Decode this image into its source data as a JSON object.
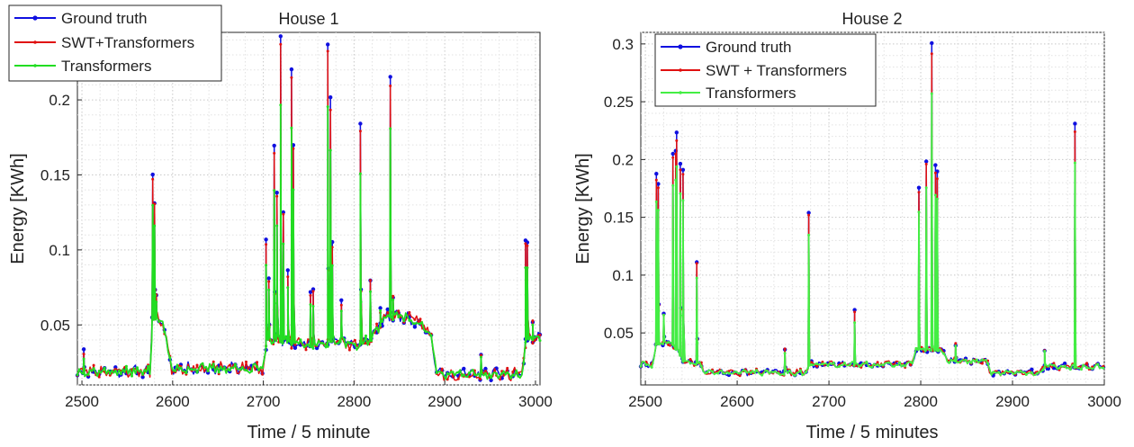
{
  "chart_data": [
    {
      "type": "line",
      "title": "House 1",
      "xlabel": "Time / 5 minute",
      "ylabel": "Energy [KWh]",
      "xlim": [
        2495,
        3005
      ],
      "ylim": [
        0.01,
        0.245
      ],
      "xticks": [
        2500,
        2600,
        2700,
        2800,
        2900,
        3000
      ],
      "yticks": [
        0.05,
        0.1,
        0.15,
        0.2
      ],
      "ytick_labels": [
        "0.05",
        "0.1",
        "0.15",
        "0.2"
      ],
      "grid": true,
      "legend_position": "top-left-outside",
      "baseline": [
        [
          2495,
          0.018
        ],
        [
          2575,
          0.018
        ],
        [
          2578,
          0.055
        ],
        [
          2590,
          0.05
        ],
        [
          2598,
          0.02
        ],
        [
          2700,
          0.02
        ],
        [
          2705,
          0.04
        ],
        [
          2760,
          0.035
        ],
        [
          2780,
          0.04
        ],
        [
          2800,
          0.035
        ],
        [
          2820,
          0.04
        ],
        [
          2835,
          0.055
        ],
        [
          2850,
          0.055
        ],
        [
          2875,
          0.05
        ],
        [
          2885,
          0.04
        ],
        [
          2892,
          0.016
        ],
        [
          2985,
          0.016
        ],
        [
          2990,
          0.04
        ],
        [
          2995,
          0.04
        ],
        [
          3005,
          0.04
        ]
      ],
      "spikes": [
        [
          2502,
          0.032
        ],
        [
          2578,
          0.152
        ],
        [
          2580,
          0.132
        ],
        [
          2582,
          0.07
        ],
        [
          2703,
          0.105
        ],
        [
          2706,
          0.082
        ],
        [
          2712,
          0.17
        ],
        [
          2715,
          0.138
        ],
        [
          2719,
          0.242
        ],
        [
          2722,
          0.125
        ],
        [
          2727,
          0.085
        ],
        [
          2731,
          0.222
        ],
        [
          2733,
          0.17
        ],
        [
          2752,
          0.07
        ],
        [
          2755,
          0.072
        ],
        [
          2771,
          0.238
        ],
        [
          2774,
          0.2
        ],
        [
          2776,
          0.105
        ],
        [
          2786,
          0.065
        ],
        [
          2807,
          0.183
        ],
        [
          2818,
          0.08
        ],
        [
          2829,
          0.06
        ],
        [
          2840,
          0.215
        ],
        [
          2843,
          0.07
        ],
        [
          2940,
          0.03
        ],
        [
          2989,
          0.105
        ],
        [
          2991,
          0.104
        ],
        [
          2997,
          0.052
        ]
      ],
      "series": [
        {
          "name": "Ground truth",
          "color": "#1010e0",
          "scale": 1.0,
          "noise": 0.003,
          "seed": 11
        },
        {
          "name": "SWT+Transformers",
          "color": "#e01010",
          "scale": 0.97,
          "noise": 0.0032,
          "seed": 23
        },
        {
          "name": "Transformers",
          "color": "#22dd22",
          "scale": 0.78,
          "noise": 0.0025,
          "seed": 37
        }
      ]
    },
    {
      "type": "line",
      "title": "House 2",
      "xlabel": "Time / 5 minutes",
      "ylabel": "Energy [KWh]",
      "xlim": [
        2495,
        3000
      ],
      "ylim": [
        0.005,
        0.31
      ],
      "xticks": [
        2500,
        2600,
        2700,
        2800,
        2900,
        3000
      ],
      "yticks": [
        0.05,
        0.1,
        0.15,
        0.2,
        0.25,
        0.3
      ],
      "ytick_labels": [
        "0.05",
        "0.1",
        "0.15",
        "0.2",
        "0.25",
        "0.3"
      ],
      "grid": true,
      "legend_position": "top-left",
      "baseline": [
        [
          2495,
          0.022
        ],
        [
          2508,
          0.022
        ],
        [
          2512,
          0.04
        ],
        [
          2530,
          0.04
        ],
        [
          2542,
          0.025
        ],
        [
          2560,
          0.022
        ],
        [
          2565,
          0.015
        ],
        [
          2675,
          0.015
        ],
        [
          2680,
          0.022
        ],
        [
          2790,
          0.022
        ],
        [
          2795,
          0.035
        ],
        [
          2822,
          0.035
        ],
        [
          2830,
          0.025
        ],
        [
          2872,
          0.025
        ],
        [
          2876,
          0.015
        ],
        [
          2932,
          0.015
        ],
        [
          2935,
          0.02
        ],
        [
          3000,
          0.02
        ]
      ],
      "spikes": [
        [
          2512,
          0.188
        ],
        [
          2514,
          0.18
        ],
        [
          2520,
          0.068
        ],
        [
          2530,
          0.205
        ],
        [
          2533,
          0.208
        ],
        [
          2534,
          0.222
        ],
        [
          2538,
          0.195
        ],
        [
          2541,
          0.192
        ],
        [
          2556,
          0.113
        ],
        [
          2652,
          0.035
        ],
        [
          2678,
          0.155
        ],
        [
          2728,
          0.068
        ],
        [
          2798,
          0.176
        ],
        [
          2806,
          0.2
        ],
        [
          2812,
          0.301
        ],
        [
          2816,
          0.195
        ],
        [
          2818,
          0.19
        ],
        [
          2838,
          0.04
        ],
        [
          2935,
          0.036
        ],
        [
          2968,
          0.23
        ]
      ],
      "series": [
        {
          "name": "Ground truth",
          "color": "#1010e0",
          "scale": 1.0,
          "noise": 0.002,
          "seed": 13
        },
        {
          "name": "SWT + Transformers",
          "color": "#e01010",
          "scale": 0.97,
          "noise": 0.0022,
          "seed": 29
        },
        {
          "name": "Transformers",
          "color": "#44ee44",
          "scale": 0.84,
          "noise": 0.0018,
          "seed": 41
        }
      ]
    }
  ]
}
